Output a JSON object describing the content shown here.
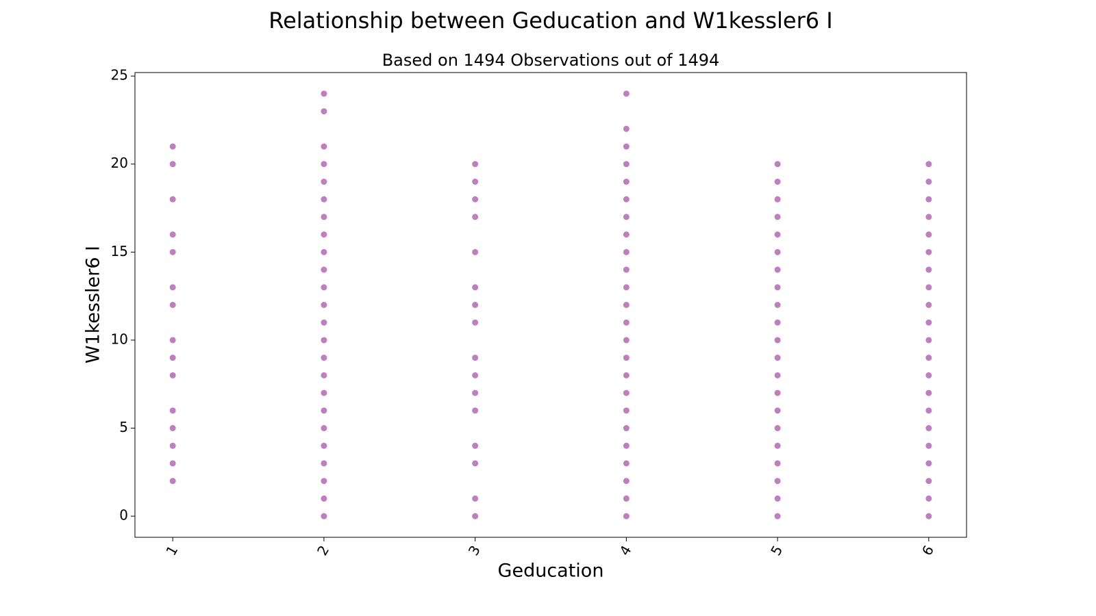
{
  "chart_data": {
    "type": "scatter",
    "title": "Relationship between Geducation and W1kessler6 I",
    "subtitle": "Based on 1494 Observations out of 1494",
    "x_label": "Geducation",
    "y_label": "W1kessler6 I",
    "color": "purple",
    "alpha": 0.5,
    "xlim": [
      0.75,
      6.25
    ],
    "ylim": [
      -1.2,
      25.2
    ],
    "xticks": [
      1,
      2,
      3,
      4,
      5,
      6
    ],
    "yticks": [
      0,
      5,
      10,
      15,
      20,
      25
    ],
    "x": [
      1,
      1,
      1,
      1,
      1,
      1,
      1,
      1,
      1,
      1,
      1,
      1,
      1,
      1,
      1,
      2,
      2,
      2,
      2,
      2,
      2,
      2,
      2,
      2,
      2,
      2,
      2,
      2,
      2,
      2,
      2,
      2,
      2,
      2,
      2,
      2,
      2,
      2,
      2,
      3,
      3,
      3,
      3,
      3,
      3,
      3,
      3,
      3,
      3,
      3,
      3,
      3,
      3,
      3,
      3,
      4,
      4,
      4,
      4,
      4,
      4,
      4,
      4,
      4,
      4,
      4,
      4,
      4,
      4,
      4,
      4,
      4,
      4,
      4,
      4,
      4,
      4,
      4,
      4,
      5,
      5,
      5,
      5,
      5,
      5,
      5,
      5,
      5,
      5,
      5,
      5,
      5,
      5,
      5,
      5,
      5,
      5,
      5,
      5,
      5,
      6,
      6,
      6,
      6,
      6,
      6,
      6,
      6,
      6,
      6,
      6,
      6,
      6,
      6,
      6,
      6,
      6,
      6,
      6,
      6,
      6
    ],
    "values": [
      21,
      20,
      18,
      16,
      15,
      13,
      12,
      10,
      9,
      8,
      6,
      5,
      4,
      3,
      2,
      24,
      23,
      21,
      20,
      19,
      18,
      17,
      16,
      15,
      14,
      13,
      12,
      11,
      10,
      9,
      8,
      7,
      6,
      5,
      4,
      3,
      2,
      1,
      0,
      20,
      19,
      18,
      17,
      15,
      13,
      12,
      11,
      9,
      8,
      7,
      6,
      4,
      3,
      1,
      0,
      24,
      22,
      21,
      20,
      19,
      18,
      17,
      16,
      15,
      14,
      13,
      12,
      11,
      10,
      9,
      8,
      7,
      6,
      5,
      4,
      3,
      2,
      1,
      0,
      20,
      19,
      18,
      17,
      16,
      15,
      14,
      13,
      12,
      11,
      10,
      9,
      8,
      7,
      6,
      5,
      4,
      3,
      2,
      1,
      0,
      20,
      19,
      18,
      17,
      16,
      15,
      14,
      13,
      12,
      11,
      10,
      9,
      8,
      7,
      6,
      5,
      4,
      3,
      2,
      1,
      0
    ]
  }
}
